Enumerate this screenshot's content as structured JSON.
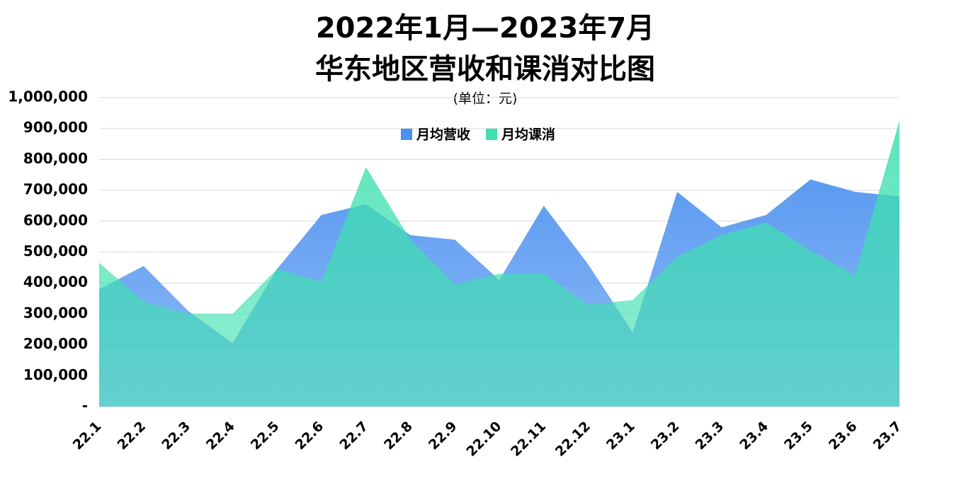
{
  "chart_data": {
    "type": "area",
    "title": [
      "2022年1月—2023年7月",
      "华东地区营收和课消对比图"
    ],
    "subtitle": "(单位：元)",
    "categories": [
      "22.1",
      "22.2",
      "22.3",
      "22.4",
      "22.5",
      "22.6",
      "22.7",
      "22.8",
      "22.9",
      "22.10",
      "22.11",
      "22.12",
      "23.1",
      "23.2",
      "23.3",
      "23.4",
      "23.5",
      "23.6",
      "23.7"
    ],
    "series": [
      {
        "name": "月均营收",
        "color": "#4a90f0",
        "values": [
          380000,
          455000,
          310000,
          205000,
          445000,
          620000,
          655000,
          555000,
          540000,
          410000,
          650000,
          460000,
          240000,
          695000,
          580000,
          620000,
          735000,
          695000,
          680000
        ]
      },
      {
        "name": "月均课消",
        "color": "#3ee0b0",
        "values": [
          465000,
          340000,
          300000,
          300000,
          445000,
          405000,
          775000,
          540000,
          395000,
          430000,
          430000,
          330000,
          345000,
          485000,
          555000,
          595000,
          505000,
          425000,
          925000
        ]
      }
    ],
    "ylim": [
      0,
      1000000
    ],
    "yticks": [
      {
        "value": 0,
        "label": "-"
      },
      {
        "value": 100000,
        "label": "100,000"
      },
      {
        "value": 200000,
        "label": "200,000"
      },
      {
        "value": 300000,
        "label": "300,000"
      },
      {
        "value": 400000,
        "label": "400,000"
      },
      {
        "value": 500000,
        "label": "500,000"
      },
      {
        "value": 600000,
        "label": "600,000"
      },
      {
        "value": 700000,
        "label": "700,000"
      },
      {
        "value": 800000,
        "label": "800,000"
      },
      {
        "value": 900000,
        "label": "900,000"
      },
      {
        "value": 1000000,
        "label": "1,000,000"
      }
    ],
    "grid": true,
    "legend": "top"
  }
}
